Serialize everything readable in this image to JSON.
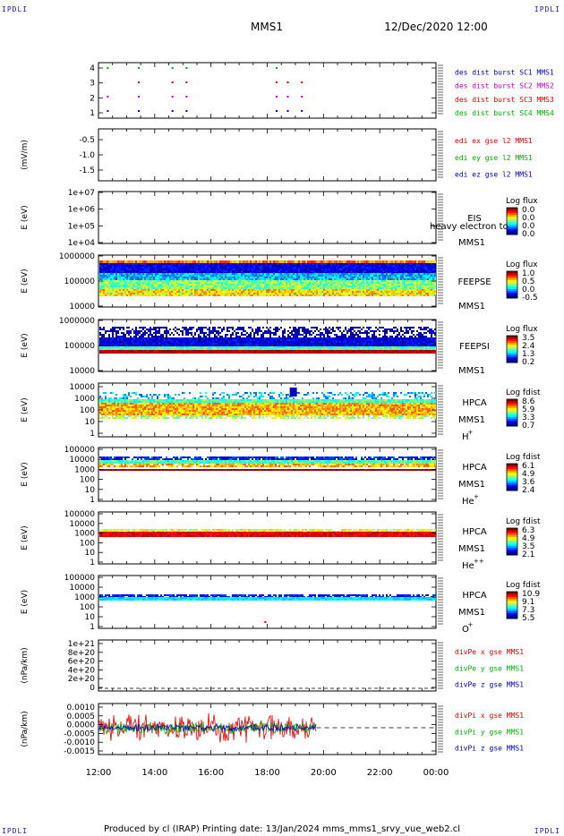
{
  "header": {
    "mission": "MMS1",
    "date": "12/Dec/2020 12:00",
    "corner_label": "IPDLI"
  },
  "footer": {
    "text": "Produced by cl (IRAP)   Printing date: 13/Jan/2024   mms_mms1_srvy_vue_web2.cl"
  },
  "time_axis": {
    "tick_labels": [
      "12:00",
      "14:00",
      "16:00",
      "18:00",
      "20:00",
      "22:00",
      "00:00"
    ]
  },
  "colors": {
    "red": "#e00000",
    "green": "#00b000",
    "blue": "#0000c0",
    "magenta": "#c000c0",
    "dark_blue": "#00008b"
  },
  "chart_data": [
    {
      "type": "scatter",
      "id": "des_dist",
      "y_ticks": [
        "4",
        "3",
        "2",
        "1"
      ],
      "legend": [
        {
          "label": "des dist burst SC1 MMS1",
          "color": "#0000c0"
        },
        {
          "label": "des dist burst SC2 MMS2",
          "color": "#c000c0"
        },
        {
          "label": "des dist burst SC3 MMS3",
          "color": "#e00000"
        },
        {
          "label": "des dist burst SC4 MMS4",
          "color": "#00b000"
        }
      ],
      "bursts_hours": [
        12.3,
        13.4,
        14.6,
        15.1,
        18.3,
        18.7,
        19.2
      ]
    },
    {
      "type": "line",
      "id": "edi_e",
      "ylabel": "(mV/m)",
      "y_ticks": [
        "-0.5",
        "-1.0",
        "-1.5"
      ],
      "legend": [
        {
          "label": "edi ex gse l2 MMS1",
          "color": "#e00000"
        },
        {
          "label": "edi ey gse l2 MMS1",
          "color": "#00b000"
        },
        {
          "label": "edi ez gse l2 MMS1",
          "color": "#0000c0"
        }
      ]
    },
    {
      "type": "heatmap",
      "id": "eis",
      "ylabel": "E (eV)",
      "y_ticks": [
        "1e+07",
        "1e+06",
        "1e+05",
        "1e+04"
      ],
      "instrument": "EIS",
      "species": "",
      "sc": "MMS1",
      "overlay_text": "heavy electron to",
      "colorbar_title": "Log flux",
      "colorbar_ticks": [
        "0.0",
        "0.0",
        "0.0",
        "0.0"
      ]
    },
    {
      "type": "heatmap",
      "id": "feepse",
      "ylabel": "E (eV)",
      "y_ticks": [
        "1000000",
        "100000",
        "10000"
      ],
      "instrument": "FEEPSE",
      "species": "",
      "sc": "MMS1",
      "colorbar_title": "Log flux",
      "colorbar_ticks": [
        "1.0",
        "0.5",
        "0.0",
        "-0.5"
      ]
    },
    {
      "type": "heatmap",
      "id": "feepsi",
      "ylabel": "E (eV)",
      "y_ticks": [
        "1000000",
        "100000",
        "10000"
      ],
      "instrument": "FEEPSI",
      "species": "",
      "sc": "MMS1",
      "colorbar_title": "Log flux",
      "colorbar_ticks": [
        "3.5",
        "2.4",
        "1.3",
        "0.2"
      ]
    },
    {
      "type": "heatmap",
      "id": "hpca_h",
      "ylabel": "E (eV)",
      "y_ticks": [
        "10000",
        "1000",
        "100",
        "10",
        "1"
      ],
      "instrument": "HPCA",
      "species": "H",
      "species_sup": "+",
      "sc": "MMS1",
      "colorbar_title": "Log fdist",
      "colorbar_ticks": [
        "8.6",
        "5.9",
        "3.3",
        "0.7"
      ]
    },
    {
      "type": "heatmap",
      "id": "hpca_he",
      "ylabel": "E (eV)",
      "y_ticks": [
        "100000",
        "10000",
        "1000",
        "100",
        "10",
        "1"
      ],
      "instrument": "HPCA",
      "species": "He",
      "species_sup": "+",
      "sc": "MMS1",
      "colorbar_title": "Log fdist",
      "colorbar_ticks": [
        "6.1",
        "4.9",
        "3.6",
        "2.4"
      ]
    },
    {
      "type": "heatmap",
      "id": "hpca_hepp",
      "ylabel": "E (eV)",
      "y_ticks": [
        "100000",
        "10000",
        "1000",
        "100",
        "10",
        "1"
      ],
      "instrument": "HPCA",
      "species": "He",
      "species_sup": "++",
      "sc": "MMS1",
      "colorbar_title": "Log fdist",
      "colorbar_ticks": [
        "6.3",
        "4.9",
        "3.5",
        "2.1"
      ]
    },
    {
      "type": "heatmap",
      "id": "hpca_o",
      "ylabel": "E (eV)",
      "y_ticks": [
        "100000",
        "10000",
        "1000",
        "100",
        "10",
        "1"
      ],
      "instrument": "HPCA",
      "species": "O",
      "species_sup": "+",
      "sc": "MMS1",
      "colorbar_title": "Log fdist",
      "colorbar_ticks": [
        "10.9",
        "9.1",
        "7.3",
        "5.5"
      ]
    },
    {
      "type": "line",
      "id": "divpe",
      "ylabel": "(nPa/km)",
      "y_ticks": [
        "1e+21",
        "8e+20",
        "6e+20",
        "4e+20",
        "2e+20",
        "0"
      ],
      "legend": [
        {
          "label": "divPe x gse MMS1",
          "color": "#e00000"
        },
        {
          "label": "divPe y gse MMS1",
          "color": "#00b000"
        },
        {
          "label": "divPe z gse MMS1",
          "color": "#0000c0"
        }
      ]
    },
    {
      "type": "line",
      "id": "divpi",
      "ylabel": "(nPa/km)",
      "y_ticks": [
        "0.0010",
        "0.0005",
        "0.0000",
        "-0.0005",
        "-0.0010",
        "-0.0015"
      ],
      "data_end_hour": 19.75,
      "legend": [
        {
          "label": "divPi x gse MMS1",
          "color": "#e00000"
        },
        {
          "label": "divPi y gse MMS1",
          "color": "#00b000"
        },
        {
          "label": "divPi z gse MMS1",
          "color": "#0000c0"
        }
      ]
    }
  ]
}
